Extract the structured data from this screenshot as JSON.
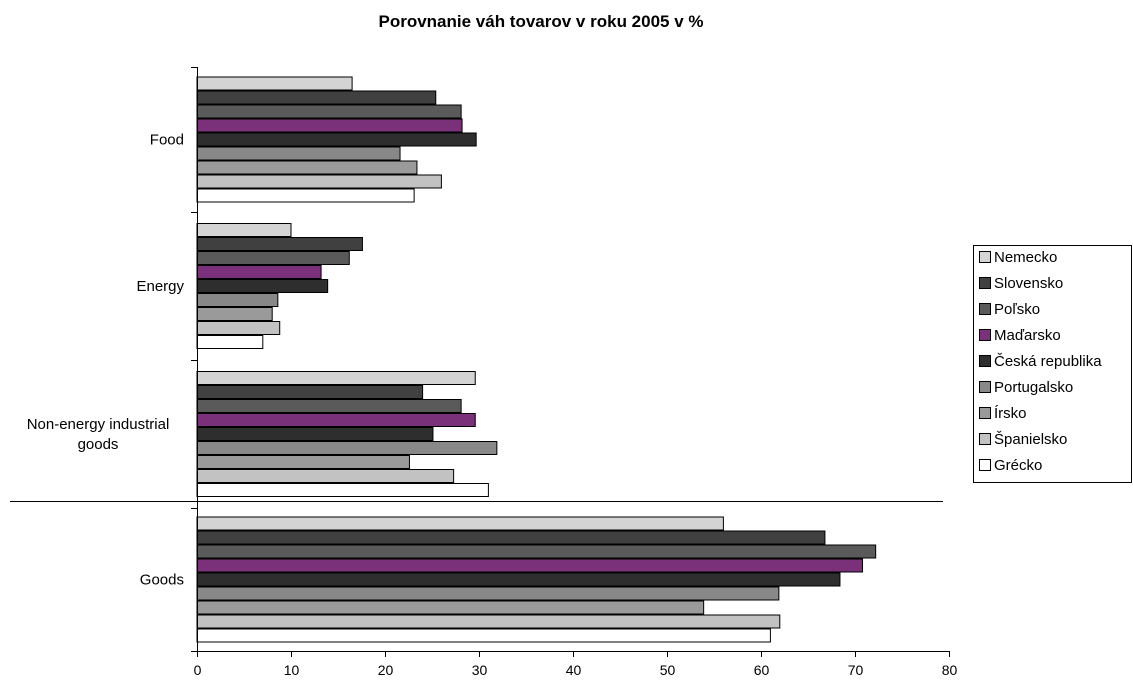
{
  "chart_data": {
    "type": "bar",
    "orientation": "horizontal",
    "title": "Porovnanie váh tovarov v roku 2005 v %",
    "xlabel": "",
    "ylabel": "",
    "xlim": [
      0,
      80
    ],
    "xticks": [
      0,
      10,
      20,
      30,
      40,
      50,
      60,
      70,
      80
    ],
    "grid": false,
    "legend_position": "right",
    "categories": [
      "Food",
      "Energy",
      "Non-energy industrial goods",
      "Goods"
    ],
    "series": [
      {
        "name": "Nemecko",
        "color": "#d4d4d4",
        "values": [
          16.5,
          10.0,
          29.6,
          56.0
        ]
      },
      {
        "name": "Slovensko",
        "color": "#404040",
        "values": [
          25.4,
          17.6,
          24.0,
          66.8
        ]
      },
      {
        "name": "Poľsko",
        "color": "#5a5a5a",
        "values": [
          28.1,
          16.2,
          28.1,
          72.2
        ]
      },
      {
        "name": "Maďarsko",
        "color": "#7a3179",
        "values": [
          28.2,
          13.2,
          29.6,
          70.8
        ]
      },
      {
        "name": "Česká republika",
        "color": "#2e2e2e",
        "values": [
          29.7,
          13.9,
          25.1,
          68.4
        ]
      },
      {
        "name": "Portugalsko",
        "color": "#888888",
        "values": [
          21.6,
          8.6,
          31.9,
          61.9
        ]
      },
      {
        "name": "Írsko",
        "color": "#9a9a9a",
        "values": [
          23.4,
          8.0,
          22.6,
          53.9
        ]
      },
      {
        "name": "Španielsko",
        "color": "#c2c2c2",
        "values": [
          26.0,
          8.8,
          27.3,
          62.0
        ]
      },
      {
        "name": "Grécko",
        "color": "#ffffff",
        "values": [
          23.1,
          7.0,
          31.0,
          61.0
        ]
      }
    ]
  }
}
